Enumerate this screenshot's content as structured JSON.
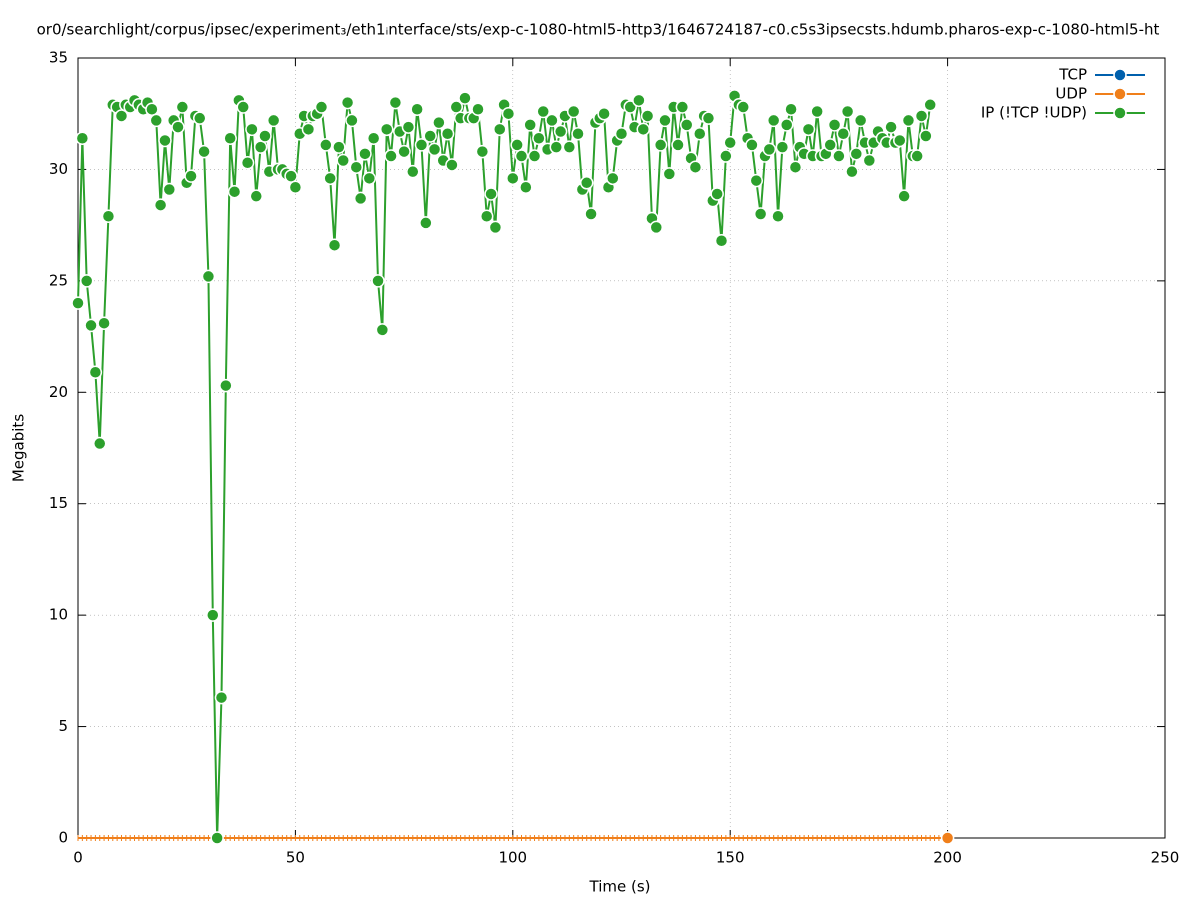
{
  "chart_data": {
    "type": "line",
    "title": "or0/searchlight/corpus/ipsec/experiment₃/eth1ᵢnterface/sts/exp-c-1080-html5-http3/1646724187-c0.c5s3ipsecsts.hdumb.pharos-exp-c-1080-html5-ht",
    "xlabel": "Time (s)",
    "ylabel": "Megabits",
    "xlim": [
      0,
      250
    ],
    "xticks": [
      0,
      50,
      100,
      150,
      200,
      250
    ],
    "ylim": [
      0,
      35
    ],
    "yticks": [
      0,
      5,
      10,
      15,
      20,
      25,
      30,
      35
    ],
    "grid": true,
    "legend": "top-right",
    "series": [
      {
        "name": "TCP",
        "color": "#0060ad",
        "x": [],
        "values": []
      },
      {
        "name": "UDP",
        "color": "#f07f1a",
        "x": [
          0,
          1,
          2,
          3,
          4,
          5,
          6,
          7,
          8,
          9,
          10,
          11,
          12,
          13,
          14,
          15,
          16,
          17,
          18,
          19,
          20,
          21,
          22,
          23,
          24,
          25,
          26,
          27,
          28,
          29,
          30,
          31,
          32,
          33,
          34,
          35,
          36,
          37,
          38,
          39,
          40,
          41,
          42,
          43,
          44,
          45,
          46,
          47,
          48,
          49,
          50,
          51,
          52,
          53,
          54,
          55,
          56,
          57,
          58,
          59,
          60,
          61,
          62,
          63,
          64,
          65,
          66,
          67,
          68,
          69,
          70,
          71,
          72,
          73,
          74,
          75,
          76,
          77,
          78,
          79,
          80,
          81,
          82,
          83,
          84,
          85,
          86,
          87,
          88,
          89,
          90,
          91,
          92,
          93,
          94,
          95,
          96,
          97,
          98,
          99,
          100,
          101,
          102,
          103,
          104,
          105,
          106,
          107,
          108,
          109,
          110,
          111,
          112,
          113,
          114,
          115,
          116,
          117,
          118,
          119,
          120,
          121,
          122,
          123,
          124,
          125,
          126,
          127,
          128,
          129,
          130,
          131,
          132,
          133,
          134,
          135,
          136,
          137,
          138,
          139,
          140,
          141,
          142,
          143,
          144,
          145,
          146,
          147,
          148,
          149,
          150,
          151,
          152,
          153,
          154,
          155,
          156,
          157,
          158,
          159,
          160,
          161,
          162,
          163,
          164,
          165,
          166,
          167,
          168,
          169,
          170,
          171,
          172,
          173,
          174,
          175,
          176,
          177,
          178,
          179,
          180,
          181,
          182,
          183,
          184,
          185,
          186,
          187,
          188,
          189,
          190,
          191,
          192,
          193,
          194,
          195,
          196,
          197,
          198,
          199,
          200
        ],
        "values": [
          0,
          0,
          0,
          0,
          0,
          0,
          0,
          0,
          0,
          0,
          0,
          0,
          0,
          0,
          0,
          0,
          0,
          0,
          0,
          0,
          0,
          0,
          0,
          0,
          0,
          0,
          0,
          0,
          0,
          0,
          0,
          0,
          0,
          0,
          0,
          0,
          0,
          0,
          0,
          0,
          0,
          0,
          0,
          0,
          0,
          0,
          0,
          0,
          0,
          0,
          0,
          0,
          0,
          0,
          0,
          0,
          0,
          0,
          0,
          0,
          0,
          0,
          0,
          0,
          0,
          0,
          0,
          0,
          0,
          0,
          0,
          0,
          0,
          0,
          0,
          0,
          0,
          0,
          0,
          0,
          0,
          0,
          0,
          0,
          0,
          0,
          0,
          0,
          0,
          0,
          0,
          0,
          0,
          0,
          0,
          0,
          0,
          0,
          0,
          0,
          0,
          0,
          0,
          0,
          0,
          0,
          0,
          0,
          0,
          0,
          0,
          0,
          0,
          0,
          0,
          0,
          0,
          0,
          0,
          0,
          0,
          0,
          0,
          0,
          0,
          0,
          0,
          0,
          0,
          0,
          0,
          0,
          0,
          0,
          0,
          0,
          0,
          0,
          0,
          0,
          0,
          0,
          0,
          0,
          0,
          0,
          0,
          0,
          0,
          0,
          0,
          0,
          0,
          0,
          0,
          0,
          0,
          0,
          0,
          0,
          0,
          0,
          0,
          0,
          0,
          0,
          0,
          0,
          0,
          0,
          0,
          0,
          0,
          0,
          0,
          0,
          0,
          0,
          0,
          0,
          0,
          0,
          0,
          0,
          0,
          0,
          0,
          0,
          0,
          0,
          0,
          0,
          0,
          0,
          0,
          0,
          0,
          0,
          0,
          0,
          0
        ]
      },
      {
        "name": "IP (!TCP  !UDP)",
        "color": "#2ca02c",
        "x": [
          0,
          1,
          2,
          3,
          4,
          5,
          6,
          7,
          8,
          9,
          10,
          11,
          12,
          13,
          14,
          15,
          16,
          17,
          18,
          19,
          20,
          21,
          22,
          23,
          24,
          25,
          26,
          27,
          28,
          29,
          30,
          31,
          32,
          33,
          34,
          35,
          36,
          37,
          38,
          39,
          40,
          41,
          42,
          43,
          44,
          45,
          46,
          47,
          48,
          49,
          50,
          51,
          52,
          53,
          54,
          55,
          56,
          57,
          58,
          59,
          60,
          61,
          62,
          63,
          64,
          65,
          66,
          67,
          68,
          69,
          70,
          71,
          72,
          73,
          74,
          75,
          76,
          77,
          78,
          79,
          80,
          81,
          82,
          83,
          84,
          85,
          86,
          87,
          88,
          89,
          90,
          91,
          92,
          93,
          94,
          95,
          96,
          97,
          98,
          99,
          100,
          101,
          102,
          103,
          104,
          105,
          106,
          107,
          108,
          109,
          110,
          111,
          112,
          113,
          114,
          115,
          116,
          117,
          118,
          119,
          120,
          121,
          122,
          123,
          124,
          125,
          126,
          127,
          128,
          129,
          130,
          131,
          132,
          133,
          134,
          135,
          136,
          137,
          138,
          139,
          140,
          141,
          142,
          143,
          144,
          145,
          146,
          147,
          148,
          149,
          150,
          151,
          152,
          153,
          154,
          155,
          156,
          157,
          158,
          159,
          160,
          161,
          162,
          163,
          164,
          165,
          166,
          167,
          168,
          169,
          170,
          171,
          172,
          173,
          174,
          175,
          176,
          177,
          178,
          179,
          180,
          181,
          182,
          183,
          184,
          185,
          186,
          187,
          188,
          189,
          190,
          191,
          192,
          193,
          194,
          195,
          196
        ],
        "values": [
          24.0,
          31.4,
          25.0,
          23.0,
          20.9,
          17.7,
          23.1,
          27.9,
          32.9,
          32.8,
          32.4,
          32.9,
          32.8,
          33.1,
          32.9,
          32.7,
          33.0,
          32.7,
          32.2,
          28.4,
          31.3,
          29.1,
          32.2,
          31.9,
          32.8,
          29.4,
          29.7,
          32.4,
          32.3,
          30.8,
          25.2,
          10.0,
          0,
          6.3,
          20.3,
          31.4,
          29.0,
          33.1,
          32.8,
          30.3,
          31.8,
          28.8,
          31.0,
          31.5,
          29.9,
          32.2,
          30.0,
          30.0,
          29.8,
          29.7,
          29.2,
          31.6,
          32.4,
          31.8,
          32.4,
          32.5,
          32.8,
          31.1,
          29.6,
          26.6,
          31.0,
          30.4,
          33.0,
          32.2,
          30.1,
          28.7,
          30.7,
          29.6,
          31.4,
          25.0,
          22.8,
          31.8,
          30.6,
          33.0,
          31.7,
          30.8,
          31.9,
          29.9,
          32.7,
          31.1,
          27.6,
          31.5,
          30.9,
          32.1,
          30.4,
          31.6,
          30.2,
          32.8,
          32.3,
          33.2,
          32.3,
          32.3,
          32.7,
          30.8,
          27.9,
          28.9,
          27.4,
          31.8,
          32.9,
          32.5,
          29.6,
          31.1,
          30.6,
          29.2,
          32.0,
          30.6,
          31.4,
          32.6,
          30.9,
          32.2,
          31.0,
          31.7,
          32.4,
          31.0,
          32.6,
          31.6,
          29.1,
          29.4,
          28.0,
          32.1,
          32.3,
          32.5,
          29.2,
          29.6,
          31.3,
          31.6,
          32.9,
          32.8,
          31.9,
          33.1,
          31.8,
          32.4,
          27.8,
          27.4,
          31.1,
          32.2,
          29.8,
          32.8,
          31.1,
          32.8,
          32.0,
          30.5,
          30.1,
          31.6,
          32.4,
          32.3,
          28.6,
          28.9,
          26.8,
          30.6,
          31.2,
          33.3,
          32.9,
          32.8,
          31.4,
          31.1,
          29.5,
          28.0,
          30.6,
          30.9,
          32.2,
          27.9,
          31.0,
          32.0,
          32.7,
          30.1,
          31.0,
          30.7,
          31.8,
          30.6,
          32.6,
          30.6,
          30.7,
          31.1,
          32.0,
          30.6,
          31.6,
          32.6,
          29.9,
          30.7,
          32.2,
          31.2,
          30.4,
          31.2,
          31.7,
          31.4,
          31.2,
          31.9,
          31.2,
          31.3,
          28.8,
          32.2,
          30.6,
          30.6,
          32.4,
          31.5,
          32.9
        ]
      }
    ]
  }
}
